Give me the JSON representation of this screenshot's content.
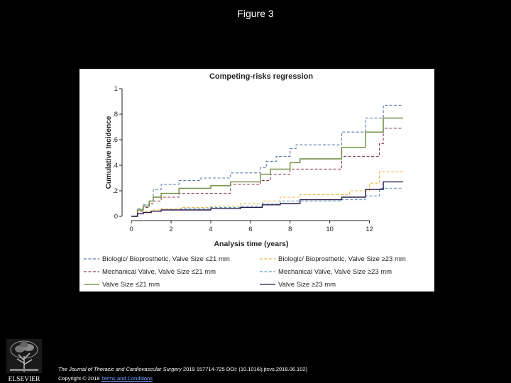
{
  "page": {
    "title": "Figure 3"
  },
  "chart_data": {
    "type": "line",
    "step": true,
    "title": "Competing-risks regression",
    "xlabel": "Analysis time (years)",
    "ylabel": "Cumulative Incidence",
    "xlim": [
      -0.4,
      14.2
    ],
    "ylim": [
      0,
      1
    ],
    "xticks": [
      0,
      2,
      4,
      6,
      8,
      10,
      12
    ],
    "xtick_labels": [
      "0",
      "2",
      "4",
      "6",
      "8",
      "10",
      "12"
    ],
    "yticks": [
      0,
      0.2,
      0.4,
      0.6,
      0.8,
      1
    ],
    "ytick_labels": [
      "0",
      ".2",
      ".4",
      ".6",
      ".8",
      "1"
    ],
    "grid": false,
    "legend_position": "bottom",
    "series": [
      {
        "name": "Biologic/ Bioprosthetic, Valve Size ≤21 mm",
        "color": "#5a7bb0",
        "dash": "dashed",
        "x": [
          0,
          0.3,
          0.6,
          0.9,
          1.1,
          1.5,
          2.4,
          3.5,
          5.0,
          6.5,
          6.8,
          7.3,
          8.0,
          8.3,
          10.6,
          11.0,
          11.8,
          12.7,
          13.7
        ],
        "y": [
          0,
          0.06,
          0.09,
          0.12,
          0.21,
          0.25,
          0.28,
          0.3,
          0.34,
          0.38,
          0.43,
          0.47,
          0.53,
          0.56,
          0.66,
          0.66,
          0.77,
          0.87,
          0.87
        ]
      },
      {
        "name": "Mechanical Valve, Valve Size ≤21 mm",
        "color": "#8a3a5a",
        "dash": "dashed",
        "x": [
          0,
          0.3,
          0.6,
          0.9,
          1.1,
          1.5,
          2.4,
          5.0,
          6.5,
          7.0,
          8.0,
          8.5,
          10.6,
          11.8,
          12.5,
          12.7,
          13.7
        ],
        "y": [
          0,
          0.04,
          0.07,
          0.1,
          0.12,
          0.15,
          0.18,
          0.25,
          0.28,
          0.33,
          0.37,
          0.37,
          0.47,
          0.47,
          0.57,
          0.69,
          0.69
        ]
      },
      {
        "name": "Valve Size ≤21 mm",
        "color": "#6a8a3a",
        "dash": "solid",
        "x": [
          0,
          0.3,
          0.6,
          0.9,
          1.1,
          1.5,
          2.4,
          4.0,
          5.0,
          6.5,
          7.0,
          8.0,
          8.5,
          10.6,
          11.8,
          12.7,
          13.7
        ],
        "y": [
          0,
          0.05,
          0.08,
          0.12,
          0.15,
          0.18,
          0.22,
          0.24,
          0.27,
          0.33,
          0.37,
          0.42,
          0.45,
          0.54,
          0.66,
          0.77,
          0.77
        ]
      },
      {
        "name": "Biologic/ Bioprosthetic, Valve Size ≥23 mm",
        "color": "#e8b84a",
        "dash": "dashed",
        "x": [
          0,
          0.3,
          0.6,
          1.0,
          1.5,
          2.5,
          4.0,
          5.5,
          6.6,
          7.5,
          8.5,
          10.6,
          11.0,
          12.0,
          12.5,
          13.7
        ],
        "y": [
          0,
          0.02,
          0.04,
          0.05,
          0.06,
          0.07,
          0.08,
          0.1,
          0.12,
          0.15,
          0.17,
          0.17,
          0.2,
          0.26,
          0.35,
          0.35
        ]
      },
      {
        "name": "Mechanical Valve, Valve Size ≥23 mm",
        "color": "#5a9ac0",
        "dash": "dashed",
        "x": [
          0,
          0.3,
          0.6,
          1.0,
          1.5,
          2.5,
          4.0,
          5.5,
          6.6,
          7.5,
          8.5,
          10.6,
          11.8,
          12.5,
          13.7
        ],
        "y": [
          0,
          0.02,
          0.03,
          0.04,
          0.05,
          0.06,
          0.07,
          0.08,
          0.1,
          0.12,
          0.12,
          0.13,
          0.16,
          0.22,
          0.22
        ]
      },
      {
        "name": "Valve Size ≥23 mm",
        "color": "#2a1a4a",
        "dash": "solid",
        "x": [
          0,
          0.3,
          0.6,
          1.0,
          1.5,
          2.5,
          4.0,
          5.5,
          6.6,
          7.5,
          8.5,
          10.6,
          11.8,
          12.7,
          13.7
        ],
        "y": [
          0,
          0.02,
          0.03,
          0.04,
          0.05,
          0.05,
          0.06,
          0.07,
          0.09,
          0.1,
          0.13,
          0.15,
          0.21,
          0.27,
          0.27
        ]
      }
    ]
  },
  "citation": {
    "journal": "The Journal of Thoracic and Cardiovascular Surgery",
    "details": " 2019 157714-725 DOI: (10.1016/j.jtcvs.2018.06.102)",
    "copyright": "Copyright © 2018 ",
    "link": "Terms and Conditions"
  },
  "logo": {
    "text": "ELSEVIER",
    "icon": "elsevier-tree-icon"
  }
}
